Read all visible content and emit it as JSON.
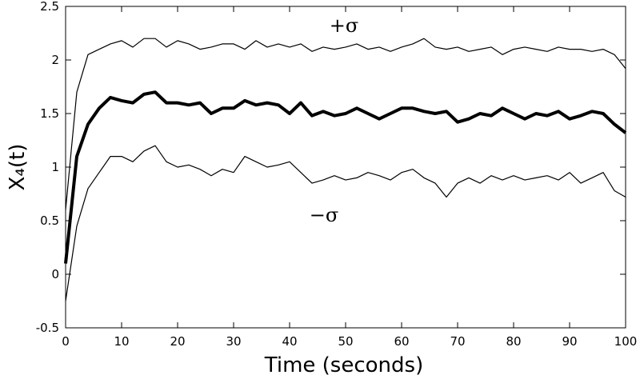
{
  "chart_data": {
    "type": "line",
    "xlabel": "Time (seconds)",
    "ylabel": "X₄(t)",
    "x": [
      0,
      2,
      4,
      6,
      8,
      10,
      12,
      14,
      16,
      18,
      20,
      22,
      24,
      26,
      28,
      30,
      32,
      34,
      36,
      38,
      40,
      42,
      44,
      46,
      48,
      50,
      52,
      54,
      56,
      58,
      60,
      62,
      64,
      66,
      68,
      70,
      72,
      74,
      76,
      78,
      80,
      82,
      84,
      86,
      88,
      90,
      92,
      94,
      96,
      98,
      100
    ],
    "series": [
      {
        "name": "+σ",
        "color": "#000000",
        "linewidth": 1.2,
        "values": [
          0.6,
          1.7,
          2.05,
          2.1,
          2.15,
          2.18,
          2.12,
          2.2,
          2.2,
          2.12,
          2.18,
          2.15,
          2.1,
          2.12,
          2.15,
          2.15,
          2.1,
          2.18,
          2.12,
          2.15,
          2.12,
          2.15,
          2.08,
          2.12,
          2.1,
          2.12,
          2.15,
          2.1,
          2.12,
          2.08,
          2.12,
          2.15,
          2.2,
          2.12,
          2.1,
          2.12,
          2.08,
          2.1,
          2.12,
          2.05,
          2.1,
          2.12,
          2.1,
          2.08,
          2.12,
          2.1,
          2.1,
          2.08,
          2.1,
          2.05,
          1.92
        ]
      },
      {
        "color": "#000000",
        "linewidth": 4,
        "values": [
          0.1,
          1.1,
          1.4,
          1.55,
          1.65,
          1.62,
          1.6,
          1.68,
          1.7,
          1.6,
          1.6,
          1.58,
          1.6,
          1.5,
          1.55,
          1.55,
          1.62,
          1.58,
          1.6,
          1.58,
          1.5,
          1.6,
          1.48,
          1.52,
          1.48,
          1.5,
          1.55,
          1.5,
          1.45,
          1.5,
          1.55,
          1.55,
          1.52,
          1.5,
          1.52,
          1.42,
          1.45,
          1.5,
          1.48,
          1.55,
          1.5,
          1.45,
          1.5,
          1.48,
          1.52,
          1.45,
          1.48,
          1.52,
          1.5,
          1.4,
          1.32
        ]
      },
      {
        "name": "−σ",
        "color": "#000000",
        "linewidth": 1.2,
        "values": [
          -0.25,
          0.45,
          0.8,
          0.95,
          1.1,
          1.1,
          1.05,
          1.15,
          1.2,
          1.05,
          1.0,
          1.02,
          0.98,
          0.92,
          0.98,
          0.95,
          1.1,
          1.05,
          1.0,
          1.02,
          1.05,
          0.95,
          0.85,
          0.88,
          0.92,
          0.88,
          0.9,
          0.95,
          0.92,
          0.88,
          0.95,
          0.98,
          0.9,
          0.85,
          0.72,
          0.85,
          0.9,
          0.85,
          0.92,
          0.88,
          0.92,
          0.88,
          0.9,
          0.92,
          0.88,
          0.95,
          0.85,
          0.9,
          0.95,
          0.78,
          0.72
        ]
      }
    ],
    "xlim": [
      0,
      100
    ],
    "xticks": [
      0,
      10,
      20,
      30,
      40,
      50,
      60,
      70,
      80,
      90,
      100
    ],
    "ylim": [
      -0.5,
      2.5
    ],
    "yticks": [
      -0.5,
      0,
      0.5,
      1,
      1.5,
      2,
      2.5
    ],
    "grid": false
  }
}
